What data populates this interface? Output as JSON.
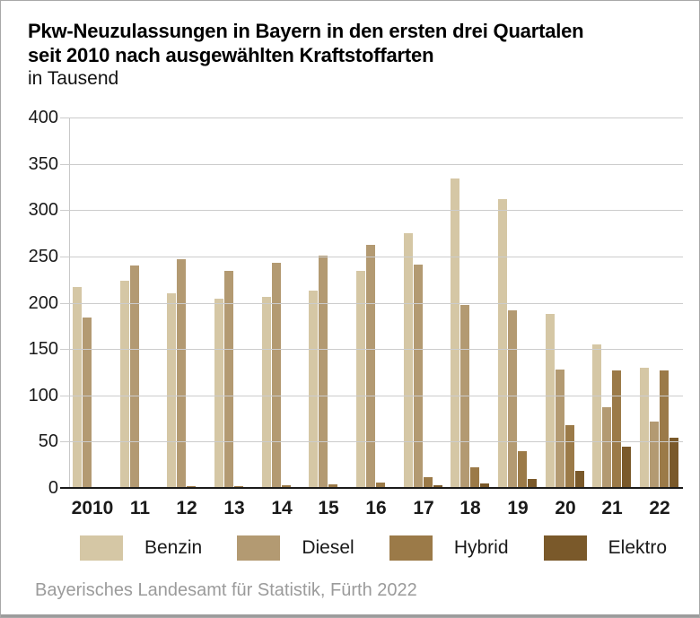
{
  "header": {
    "title_lines": [
      "Pkw-Neuzulassungen in Bayern in den ersten drei Quartalen",
      "seit 2010 nach ausgewählten Kraftstoffarten"
    ],
    "unit": "in Tausend"
  },
  "chart_data": {
    "type": "bar",
    "title": "Pkw-Neuzulassungen in Bayern in den ersten drei Quartalen seit 2010 nach ausgewählten Kraftstoffarten",
    "subtitle": "in Tausend",
    "categories": [
      "2010",
      "11",
      "12",
      "13",
      "14",
      "15",
      "16",
      "17",
      "18",
      "19",
      "20",
      "21",
      "22"
    ],
    "series": [
      {
        "name": "Benzin",
        "color": "#d5c7a5",
        "values": [
          217,
          224,
          210,
          204,
          206,
          213,
          234,
          275,
          334,
          312,
          188,
          155,
          130
        ]
      },
      {
        "name": "Diesel",
        "color": "#b39a72",
        "values": [
          184,
          240,
          247,
          234,
          243,
          251,
          262,
          241,
          198,
          192,
          128,
          87,
          72
        ]
      },
      {
        "name": "Hybrid",
        "color": "#9b7a48",
        "values": [
          0,
          0,
          2,
          2,
          3,
          4,
          6,
          12,
          22,
          40,
          68,
          127,
          127
        ]
      },
      {
        "name": "Elektro",
        "color": "#7a592a",
        "values": [
          0,
          0,
          0,
          0,
          0,
          0,
          1,
          3,
          5,
          10,
          18,
          45,
          54
        ]
      }
    ],
    "ylim": [
      0,
      400
    ],
    "yticks": [
      400,
      350,
      300,
      250,
      200,
      150,
      100,
      50,
      0
    ],
    "grid": true,
    "legend_position": "bottom",
    "xlabel": "",
    "ylabel": "in Tausend"
  },
  "footer": {
    "source": "Bayerisches Landesamt für Statistik, Fürth 2022"
  },
  "colors": {
    "grid": "#cccccc",
    "baseline": "#1a1a1a",
    "source_text": "#9b9b9b",
    "frame_border": "#a8a8a8"
  }
}
